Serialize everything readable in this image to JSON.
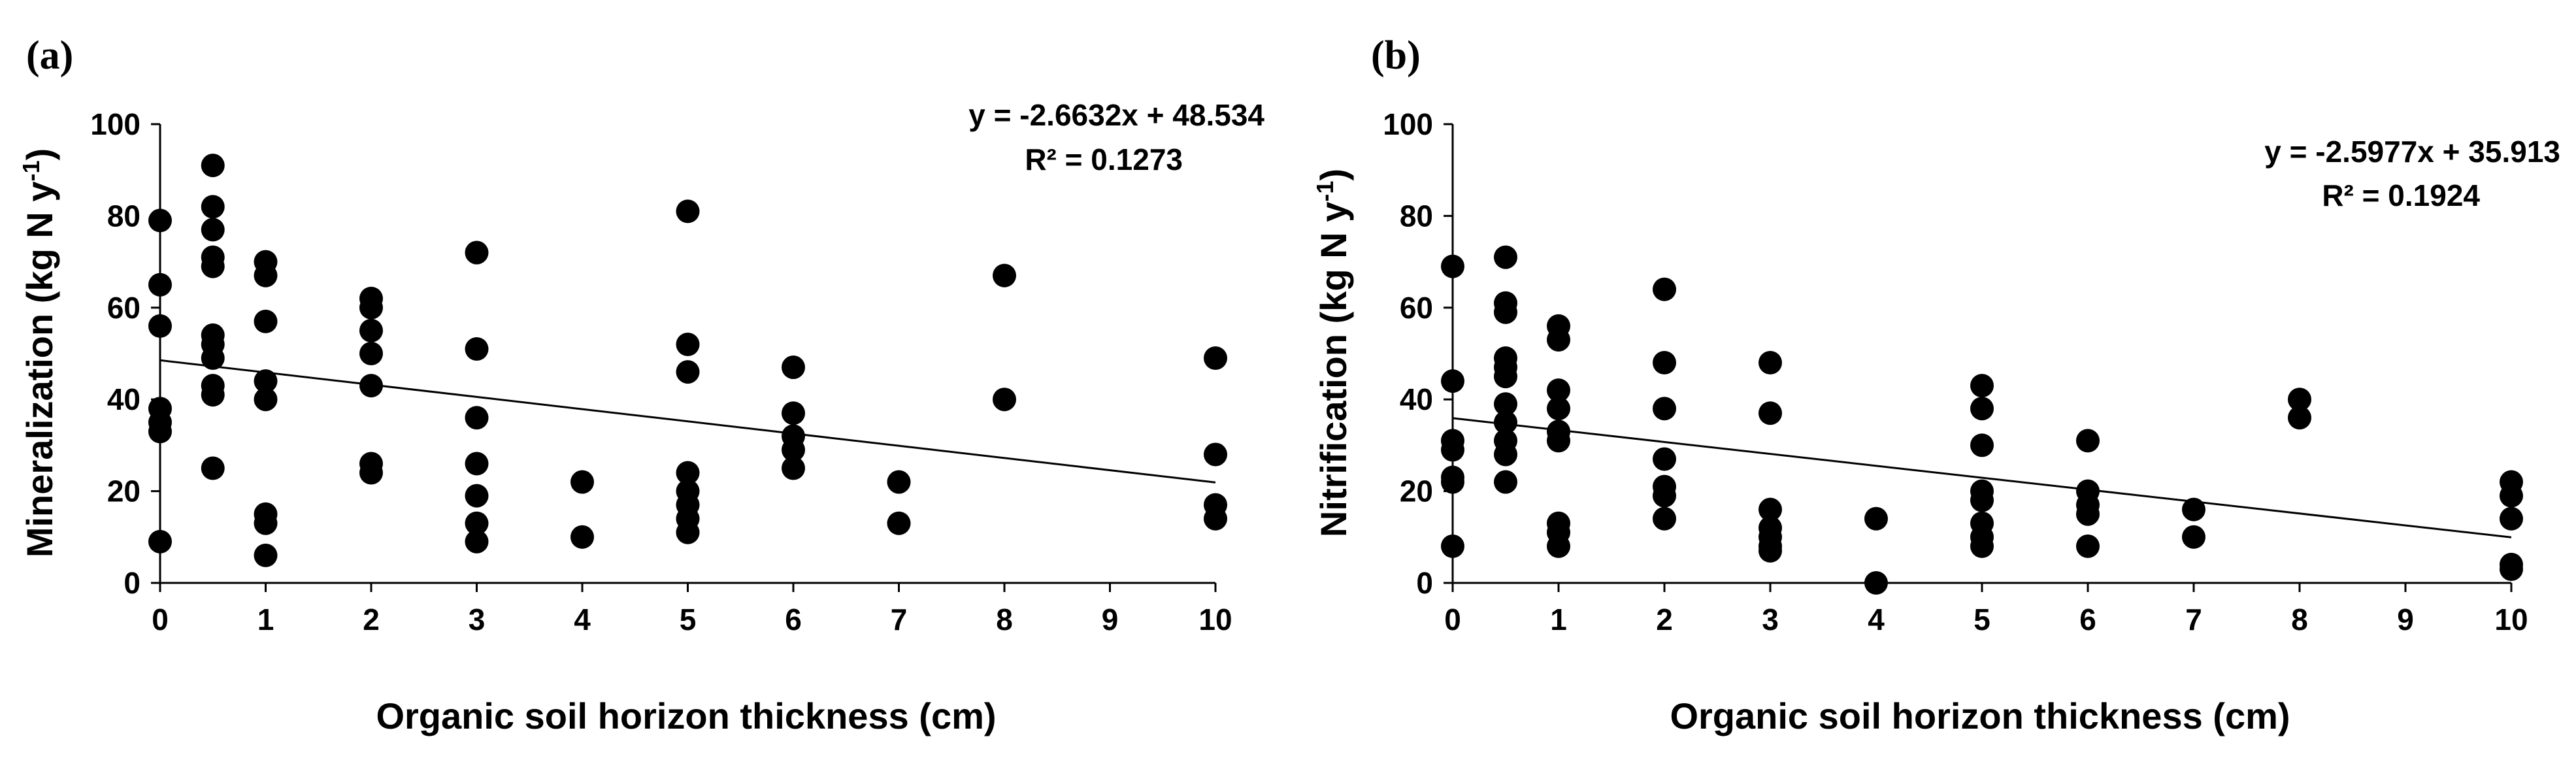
{
  "chart_data": [
    {
      "type": "scatter",
      "panel_label": "(a)",
      "xlabel": "Organic soil horizon thickness (cm)",
      "ylabel_main": "Mineralization (kg N y",
      "ylabel_sup": "-1",
      "ylabel_end": ")",
      "xlim": [
        0,
        10
      ],
      "ylim": [
        0,
        100
      ],
      "xticks": [
        0,
        1,
        2,
        3,
        4,
        5,
        6,
        7,
        8,
        9,
        10
      ],
      "yticks": [
        0,
        20,
        40,
        60,
        80,
        100
      ],
      "trendline": {
        "slope": -2.6632,
        "intercept": 48.534
      },
      "equation": "y = -2.6632x + 48.534",
      "r2_label": "R² = 0.1273",
      "points": [
        [
          0,
          79
        ],
        [
          0,
          65
        ],
        [
          0,
          56
        ],
        [
          0,
          38
        ],
        [
          0,
          35
        ],
        [
          0,
          33
        ],
        [
          0,
          9
        ],
        [
          0.5,
          91
        ],
        [
          0.5,
          82
        ],
        [
          0.5,
          77
        ],
        [
          0.5,
          71
        ],
        [
          0.5,
          69
        ],
        [
          0.5,
          54
        ],
        [
          0.5,
          52
        ],
        [
          0.5,
          49
        ],
        [
          0.5,
          43
        ],
        [
          0.5,
          41
        ],
        [
          0.5,
          25
        ],
        [
          1,
          70
        ],
        [
          1,
          67
        ],
        [
          1,
          57
        ],
        [
          1,
          44
        ],
        [
          1,
          40
        ],
        [
          1,
          15
        ],
        [
          1,
          13
        ],
        [
          1,
          6
        ],
        [
          2,
          62
        ],
        [
          2,
          60
        ],
        [
          2,
          55
        ],
        [
          2,
          50
        ],
        [
          2,
          43
        ],
        [
          2,
          26
        ],
        [
          2,
          24
        ],
        [
          3,
          72
        ],
        [
          3,
          51
        ],
        [
          3,
          36
        ],
        [
          3,
          26
        ],
        [
          3,
          19
        ],
        [
          3,
          13
        ],
        [
          3,
          9
        ],
        [
          4,
          22
        ],
        [
          4,
          10
        ],
        [
          5,
          81
        ],
        [
          5,
          52
        ],
        [
          5,
          46
        ],
        [
          5,
          24
        ],
        [
          5,
          20
        ],
        [
          5,
          17
        ],
        [
          5,
          14
        ],
        [
          5,
          11
        ],
        [
          6,
          47
        ],
        [
          6,
          37
        ],
        [
          6,
          32
        ],
        [
          6,
          29
        ],
        [
          6,
          25
        ],
        [
          7,
          22
        ],
        [
          7,
          13
        ],
        [
          8,
          67
        ],
        [
          8,
          40
        ],
        [
          10,
          49
        ],
        [
          10,
          28
        ],
        [
          10,
          17
        ],
        [
          10,
          14
        ]
      ]
    },
    {
      "type": "scatter",
      "panel_label": "(b)",
      "xlabel": "Organic soil horizon thickness (cm)",
      "ylabel_main": "Nitrification (kg N y",
      "ylabel_sup": "-1",
      "ylabel_end": ")",
      "xlim": [
        0,
        10
      ],
      "ylim": [
        0,
        100
      ],
      "xticks": [
        0,
        1,
        2,
        3,
        4,
        5,
        6,
        7,
        8,
        9,
        10
      ],
      "yticks": [
        0,
        20,
        40,
        60,
        80,
        100
      ],
      "trendline": {
        "slope": -2.5977,
        "intercept": 35.913
      },
      "equation": "y = -2.5977x + 35.913",
      "r2_label": "R² = 0.1924",
      "points": [
        [
          0,
          69
        ],
        [
          0,
          44
        ],
        [
          0,
          31
        ],
        [
          0,
          29
        ],
        [
          0,
          23
        ],
        [
          0,
          22
        ],
        [
          0,
          8
        ],
        [
          0.5,
          71
        ],
        [
          0.5,
          61
        ],
        [
          0.5,
          59
        ],
        [
          0.5,
          49
        ],
        [
          0.5,
          47
        ],
        [
          0.5,
          45
        ],
        [
          0.5,
          39
        ],
        [
          0.5,
          35
        ],
        [
          0.5,
          31
        ],
        [
          0.5,
          28
        ],
        [
          0.5,
          22
        ],
        [
          1,
          56
        ],
        [
          1,
          53
        ],
        [
          1,
          42
        ],
        [
          1,
          38
        ],
        [
          1,
          33
        ],
        [
          1,
          31
        ],
        [
          1,
          13
        ],
        [
          1,
          11
        ],
        [
          1,
          8
        ],
        [
          2,
          64
        ],
        [
          2,
          48
        ],
        [
          2,
          38
        ],
        [
          2,
          27
        ],
        [
          2,
          21
        ],
        [
          2,
          19
        ],
        [
          2,
          14
        ],
        [
          3,
          48
        ],
        [
          3,
          37
        ],
        [
          3,
          16
        ],
        [
          3,
          12
        ],
        [
          3,
          10
        ],
        [
          3,
          8
        ],
        [
          3,
          7
        ],
        [
          4,
          14
        ],
        [
          4,
          0
        ],
        [
          5,
          43
        ],
        [
          5,
          38
        ],
        [
          5,
          30
        ],
        [
          5,
          20
        ],
        [
          5,
          18
        ],
        [
          5,
          13
        ],
        [
          5,
          10
        ],
        [
          5,
          8
        ],
        [
          6,
          31
        ],
        [
          6,
          20
        ],
        [
          6,
          17
        ],
        [
          6,
          15
        ],
        [
          6,
          8
        ],
        [
          7,
          16
        ],
        [
          7,
          10
        ],
        [
          8,
          40
        ],
        [
          8,
          36
        ],
        [
          10,
          22
        ],
        [
          10,
          19
        ],
        [
          10,
          14
        ],
        [
          10,
          4
        ],
        [
          10,
          3
        ]
      ]
    }
  ]
}
